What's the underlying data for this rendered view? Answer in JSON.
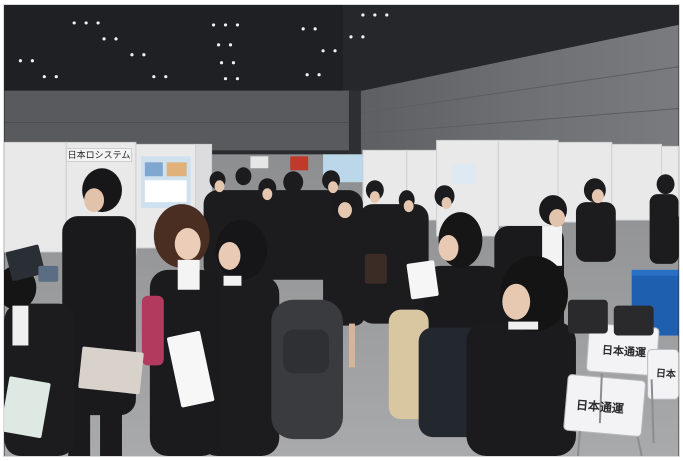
{
  "photo": {
    "subject": "",
    "signs": {
      "booth_sign": "日本ロシステム",
      "chair_label_a": "日本通運",
      "chair_label_b": "日本通運",
      "chair_label_c": "日本"
    }
  },
  "colors": {
    "ceiling": "#1f2024",
    "wall": "#6b6c6e",
    "floor": "#9a9a9c",
    "panel": "#e9e9e9",
    "suit": "#1b1b1d",
    "skin": "#e8c9b3",
    "blue_table": "#1f5fb0"
  }
}
